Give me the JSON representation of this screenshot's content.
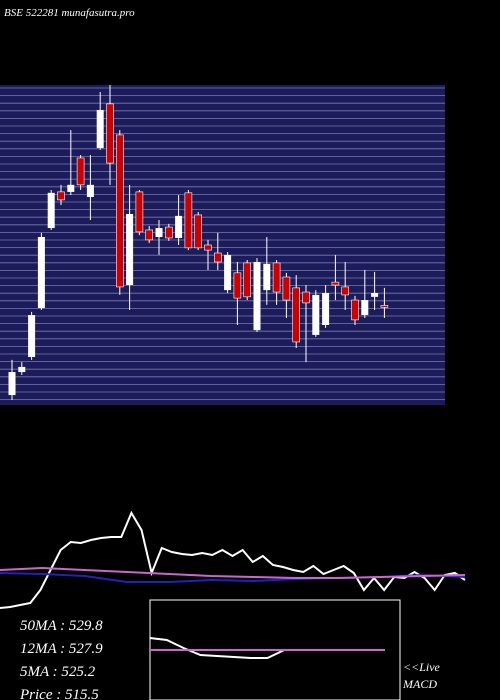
{
  "chart_data": [
    {
      "type": "candlestick",
      "title": "BSE 522281 munafasutra.pro",
      "ylim": [
        485,
        585
      ],
      "up_color": "#ffffff",
      "down_color": "#cc0000",
      "background": "#1c1c5c",
      "open": [
        488.1,
        495.3,
        500.0,
        515.3,
        540.3,
        551.6,
        551.6,
        562.2,
        550.0,
        565.3,
        579.1,
        569.4,
        522.5,
        551.6,
        539.7,
        537.5,
        540.6,
        537.2,
        551.3,
        544.4,
        535.0,
        532.5,
        520.9,
        526.3,
        529.4,
        508.4,
        520.9,
        529.4,
        525.0,
        521.6,
        520.3,
        506.9,
        510.0,
        523.4,
        521.9,
        517.8,
        513.1,
        518.8,
        516.1
      ],
      "high": [
        499.1,
        498.4,
        514.1,
        538.8,
        552.2,
        553.8,
        570.9,
        563.1,
        563.1,
        582.8,
        585.0,
        570.9,
        553.8,
        552.2,
        540.9,
        542.8,
        541.6,
        550.6,
        552.2,
        545.3,
        536.6,
        538.8,
        532.8,
        529.7,
        530.3,
        530.9,
        537.5,
        530.3,
        526.3,
        525.6,
        522.5,
        520.9,
        522.5,
        531.9,
        529.7,
        519.1,
        527.2,
        526.6,
        521.6
      ],
      "low": [
        486.6,
        494.4,
        499.1,
        514.7,
        539.7,
        547.5,
        550.6,
        552.2,
        542.8,
        564.7,
        553.8,
        519.4,
        514.7,
        538.1,
        535.6,
        531.9,
        536.3,
        535.0,
        533.4,
        533.4,
        527.2,
        527.2,
        520.0,
        510.0,
        517.8,
        507.8,
        516.3,
        516.3,
        512.2,
        502.8,
        498.4,
        506.3,
        509.1,
        517.8,
        514.7,
        510.0,
        512.2,
        514.7,
        512.2
      ],
      "close": [
        495.3,
        496.9,
        513.1,
        537.5,
        551.3,
        549.1,
        553.8,
        553.8,
        553.8,
        577.2,
        560.6,
        521.9,
        544.7,
        539.1,
        536.6,
        540.3,
        537.2,
        544.1,
        534.1,
        534.1,
        533.4,
        529.7,
        531.9,
        518.4,
        518.8,
        529.7,
        529.1,
        520.3,
        517.8,
        504.7,
        516.9,
        519.4,
        520.0,
        522.5,
        519.4,
        511.6,
        517.8,
        520.0,
        515.5
      ]
    },
    {
      "type": "line",
      "ylim": [
        0,
        120
      ],
      "series": [
        {
          "color": "#ffffff",
          "values": [
            2,
            3,
            5,
            7,
            20,
            40,
            60,
            68,
            67,
            70,
            72,
            73,
            73,
            97,
            80,
            37,
            62,
            58,
            56,
            55,
            57,
            55,
            60,
            54,
            60,
            48,
            54,
            45,
            43,
            40,
            38,
            44,
            36,
            40,
            44,
            37,
            20,
            32,
            20,
            33,
            32,
            38,
            32,
            20,
            35,
            37,
            30
          ]
        },
        {
          "color": "#2222bb",
          "values": [
            37,
            36,
            34,
            28,
            28,
            30,
            29,
            31,
            32,
            33,
            35,
            33
          ]
        },
        {
          "color": "#cc66cc",
          "values": [
            40,
            42,
            40,
            38,
            36,
            34,
            33,
            32,
            32,
            33,
            34,
            35
          ]
        }
      ],
      "stats": [
        "50MA : 529.8",
        "12MA : 527.9",
        "5MA : 525.2",
        "Price   : 515.5"
      ]
    },
    {
      "type": "line",
      "ylim": [
        0,
        100
      ],
      "series": [
        {
          "color": "#ffffff",
          "values": [
            62,
            60,
            52,
            45,
            44,
            43,
            42,
            42,
            50,
            50,
            50,
            50,
            50,
            50,
            50
          ]
        },
        {
          "color": "#cc66cc",
          "values": [
            50,
            50
          ]
        }
      ],
      "live": "<<Live",
      "label": "MACD"
    }
  ]
}
